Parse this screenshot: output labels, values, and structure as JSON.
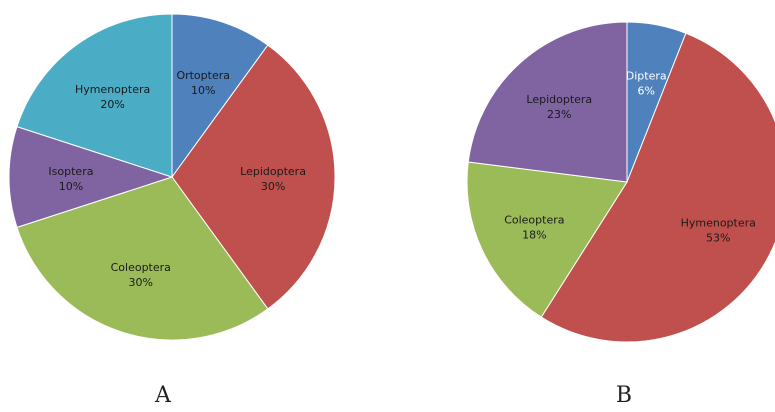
{
  "chart_data": [
    {
      "type": "pie",
      "panel_label": "A",
      "slices": [
        {
          "label": "Ortoptera",
          "value": 10,
          "value_label": "10%",
          "color": "#4F81BD",
          "label_color": "#1a1a1a"
        },
        {
          "label": "Lepidoptera",
          "value": 30,
          "value_label": "30%",
          "color": "#C0504D",
          "label_color": "#1a1a1a"
        },
        {
          "label": "Coleoptera",
          "value": 30,
          "value_label": "30%",
          "color": "#9BBB59",
          "label_color": "#1a1a1a"
        },
        {
          "label": "Isoptera",
          "value": 10,
          "value_label": "10%",
          "color": "#8064A2",
          "label_color": "#1a1a1a"
        },
        {
          "label": "Hymenoptera",
          "value": 20,
          "value_label": "20%",
          "color": "#4BACC6",
          "label_color": "#1a1a1a"
        }
      ]
    },
    {
      "type": "pie",
      "panel_label": "B",
      "slices": [
        {
          "label": "Diptera",
          "value": 6,
          "value_label": "6%",
          "color": "#4F81BD",
          "label_color": "#ffffff"
        },
        {
          "label": "Hymenoptera",
          "value": 53,
          "value_label": "53%",
          "color": "#C0504D",
          "label_color": "#1a1a1a"
        },
        {
          "label": "Coleoptera",
          "value": 18,
          "value_label": "18%",
          "color": "#9BBB59",
          "label_color": "#1a1a1a"
        },
        {
          "label": "Lepidoptera",
          "value": 23,
          "value_label": "23%",
          "color": "#8064A2",
          "label_color": "#1a1a1a"
        }
      ]
    }
  ]
}
